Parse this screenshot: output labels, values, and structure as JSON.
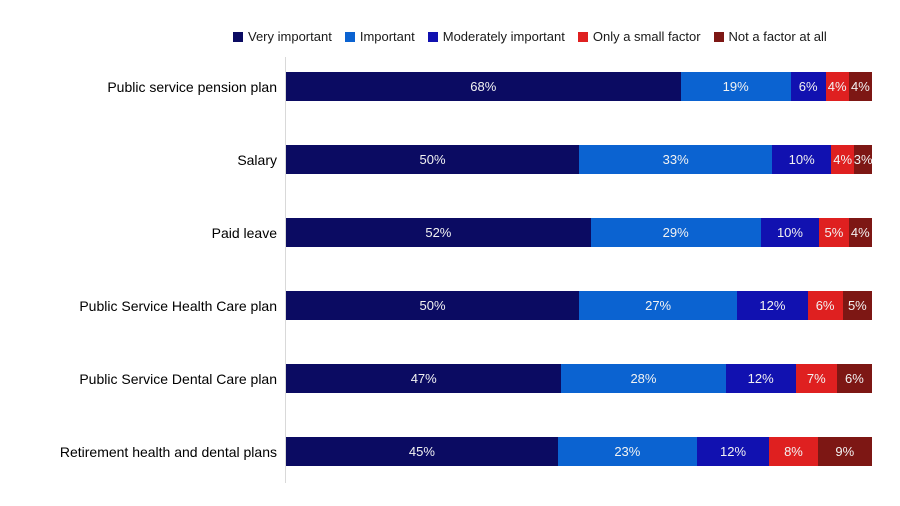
{
  "chart_data": {
    "type": "bar",
    "orientation": "horizontal",
    "stacked": true,
    "title": "",
    "xlabel": "",
    "ylabel": "",
    "xlim": [
      0,
      100
    ],
    "grid": false,
    "legend_position": "top",
    "value_suffix": "%",
    "categories": [
      "Public service pension plan",
      "Salary",
      "Paid leave",
      "Public Service Health Care plan",
      "Public Service Dental Care plan",
      "Retirement health and dental plans"
    ],
    "series": [
      {
        "name": "Very important",
        "color": "#0B0B62",
        "values": [
          68,
          50,
          52,
          50,
          47,
          45
        ]
      },
      {
        "name": "Important",
        "color": "#0B63D1",
        "values": [
          19,
          33,
          29,
          27,
          28,
          23
        ]
      },
      {
        "name": "Moderately important",
        "color": "#1111B0",
        "values": [
          6,
          10,
          10,
          12,
          12,
          12
        ]
      },
      {
        "name": "Only a small factor",
        "color": "#DF2020",
        "values": [
          4,
          4,
          5,
          6,
          7,
          8
        ]
      },
      {
        "name": "Not a factor at all",
        "color": "#7D1714",
        "values": [
          4,
          3,
          4,
          5,
          6,
          9
        ]
      }
    ]
  },
  "colors": {
    "axis_line": "#d9d9d9",
    "bar_label_text": "#f2f2f2",
    "category_label_text": "#000000",
    "legend_text": "#1a1a1a",
    "background": "#ffffff"
  }
}
